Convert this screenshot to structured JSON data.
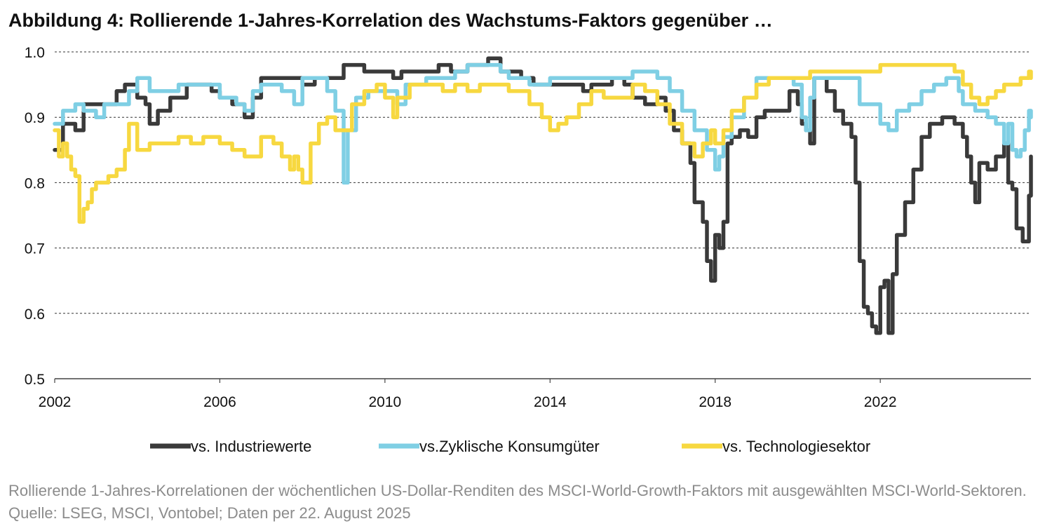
{
  "title": "Abbildung 4: Rollierende 1-Jahres-Korrelation des Wachstums-Faktors gegenüber …",
  "caption": "Rollierende 1-Jahres-Korrelationen der wöchentlichen US-Dollar-Renditen des MSCI-World-Growth-Faktors mit ausgewählten MSCI-World-Sektoren. Quelle: LSEG, MSCI, Vontobel; Daten per 22. August 2025",
  "chart_data": {
    "type": "line",
    "title": "Abbildung 4: Rollierende 1-Jahres-Korrelation des Wachstums-Faktors gegenüber …",
    "xlabel": "",
    "ylabel": "",
    "xlim": [
      2002,
      2025.65
    ],
    "ylim": [
      0.5,
      1.0
    ],
    "x_ticks": [
      "2002",
      "2006",
      "2010",
      "2014",
      "2018",
      "2022"
    ],
    "y_ticks": [
      "0.5",
      "0.6",
      "0.7",
      "0.8",
      "0.9",
      "1.0"
    ],
    "grid": "horizontal dashed",
    "legend_position": "bottom",
    "series": [
      {
        "name": "vs. Industriewerte",
        "color": "#3a3a3a",
        "points": [
          [
            2002.0,
            0.85
          ],
          [
            2002.2,
            0.89
          ],
          [
            2002.5,
            0.88
          ],
          [
            2002.7,
            0.92
          ],
          [
            2003.0,
            0.92
          ],
          [
            2003.3,
            0.92
          ],
          [
            2003.5,
            0.94
          ],
          [
            2003.7,
            0.95
          ],
          [
            2004.0,
            0.93
          ],
          [
            2004.2,
            0.92
          ],
          [
            2004.3,
            0.89
          ],
          [
            2004.5,
            0.91
          ],
          [
            2004.8,
            0.93
          ],
          [
            2005.2,
            0.95
          ],
          [
            2005.5,
            0.95
          ],
          [
            2005.8,
            0.94
          ],
          [
            2006.0,
            0.93
          ],
          [
            2006.3,
            0.92
          ],
          [
            2006.6,
            0.9
          ],
          [
            2006.8,
            0.93
          ],
          [
            2007.0,
            0.96
          ],
          [
            2007.5,
            0.96
          ],
          [
            2008.0,
            0.95
          ],
          [
            2008.3,
            0.96
          ],
          [
            2008.7,
            0.96
          ],
          [
            2009.0,
            0.98
          ],
          [
            2009.5,
            0.97
          ],
          [
            2010.0,
            0.97
          ],
          [
            2010.2,
            0.96
          ],
          [
            2010.4,
            0.97
          ],
          [
            2010.7,
            0.97
          ],
          [
            2011.0,
            0.97
          ],
          [
            2011.3,
            0.98
          ],
          [
            2011.6,
            0.97
          ],
          [
            2012.0,
            0.98
          ],
          [
            2012.3,
            0.98
          ],
          [
            2012.5,
            0.99
          ],
          [
            2012.8,
            0.97
          ],
          [
            2013.0,
            0.97
          ],
          [
            2013.3,
            0.96
          ],
          [
            2013.6,
            0.95
          ],
          [
            2014.0,
            0.95
          ],
          [
            2014.5,
            0.95
          ],
          [
            2014.8,
            0.94
          ],
          [
            2015.0,
            0.95
          ],
          [
            2015.5,
            0.96
          ],
          [
            2015.8,
            0.95
          ],
          [
            2016.0,
            0.93
          ],
          [
            2016.3,
            0.92
          ],
          [
            2016.6,
            0.93
          ],
          [
            2016.8,
            0.91
          ],
          [
            2017.0,
            0.88
          ],
          [
            2017.2,
            0.86
          ],
          [
            2017.4,
            0.83
          ],
          [
            2017.5,
            0.77
          ],
          [
            2017.7,
            0.74
          ],
          [
            2017.8,
            0.68
          ],
          [
            2017.9,
            0.65
          ],
          [
            2018.0,
            0.72
          ],
          [
            2018.1,
            0.7
          ],
          [
            2018.2,
            0.74
          ],
          [
            2018.3,
            0.86
          ],
          [
            2018.4,
            0.87
          ],
          [
            2018.6,
            0.88
          ],
          [
            2018.8,
            0.87
          ],
          [
            2019.0,
            0.9
          ],
          [
            2019.2,
            0.91
          ],
          [
            2019.5,
            0.91
          ],
          [
            2019.8,
            0.94
          ],
          [
            2020.0,
            0.92
          ],
          [
            2020.1,
            0.89
          ],
          [
            2020.2,
            0.88
          ],
          [
            2020.3,
            0.86
          ],
          [
            2020.4,
            0.96
          ],
          [
            2020.7,
            0.94
          ],
          [
            2020.9,
            0.91
          ],
          [
            2021.1,
            0.89
          ],
          [
            2021.3,
            0.87
          ],
          [
            2021.4,
            0.8
          ],
          [
            2021.5,
            0.68
          ],
          [
            2021.6,
            0.61
          ],
          [
            2021.7,
            0.6
          ],
          [
            2021.8,
            0.58
          ],
          [
            2021.9,
            0.57
          ],
          [
            2022.0,
            0.64
          ],
          [
            2022.1,
            0.65
          ],
          [
            2022.2,
            0.57
          ],
          [
            2022.3,
            0.66
          ],
          [
            2022.4,
            0.72
          ],
          [
            2022.6,
            0.77
          ],
          [
            2022.8,
            0.82
          ],
          [
            2023.0,
            0.87
          ],
          [
            2023.2,
            0.89
          ],
          [
            2023.5,
            0.9
          ],
          [
            2023.8,
            0.89
          ],
          [
            2024.0,
            0.87
          ],
          [
            2024.1,
            0.84
          ],
          [
            2024.2,
            0.8
          ],
          [
            2024.3,
            0.77
          ],
          [
            2024.4,
            0.83
          ],
          [
            2024.6,
            0.82
          ],
          [
            2024.8,
            0.84
          ],
          [
            2025.0,
            0.86
          ],
          [
            2025.1,
            0.8
          ],
          [
            2025.2,
            0.79
          ],
          [
            2025.3,
            0.73
          ],
          [
            2025.45,
            0.71
          ],
          [
            2025.6,
            0.78
          ],
          [
            2025.65,
            0.84
          ]
        ]
      },
      {
        "name": "vs.Zyklische Konsumgüter",
        "color": "#7fcfe4",
        "points": [
          [
            2002.0,
            0.89
          ],
          [
            2002.2,
            0.91
          ],
          [
            2002.5,
            0.92
          ],
          [
            2002.7,
            0.91
          ],
          [
            2003.0,
            0.9
          ],
          [
            2003.2,
            0.92
          ],
          [
            2003.5,
            0.92
          ],
          [
            2003.8,
            0.94
          ],
          [
            2004.0,
            0.96
          ],
          [
            2004.3,
            0.94
          ],
          [
            2004.6,
            0.94
          ],
          [
            2005.0,
            0.95
          ],
          [
            2005.5,
            0.95
          ],
          [
            2005.8,
            0.95
          ],
          [
            2006.0,
            0.93
          ],
          [
            2006.4,
            0.92
          ],
          [
            2006.6,
            0.91
          ],
          [
            2006.8,
            0.94
          ],
          [
            2007.0,
            0.95
          ],
          [
            2007.5,
            0.94
          ],
          [
            2007.8,
            0.92
          ],
          [
            2008.0,
            0.96
          ],
          [
            2008.3,
            0.96
          ],
          [
            2008.6,
            0.94
          ],
          [
            2008.8,
            0.91
          ],
          [
            2009.0,
            0.8
          ],
          [
            2009.1,
            0.88
          ],
          [
            2009.3,
            0.93
          ],
          [
            2009.6,
            0.94
          ],
          [
            2010.0,
            0.94
          ],
          [
            2010.3,
            0.92
          ],
          [
            2010.5,
            0.95
          ],
          [
            2011.0,
            0.96
          ],
          [
            2011.3,
            0.96
          ],
          [
            2011.7,
            0.97
          ],
          [
            2012.0,
            0.98
          ],
          [
            2012.5,
            0.98
          ],
          [
            2012.8,
            0.97
          ],
          [
            2013.0,
            0.96
          ],
          [
            2013.5,
            0.95
          ],
          [
            2014.0,
            0.96
          ],
          [
            2014.4,
            0.96
          ],
          [
            2014.8,
            0.96
          ],
          [
            2015.0,
            0.96
          ],
          [
            2015.5,
            0.96
          ],
          [
            2016.0,
            0.97
          ],
          [
            2016.3,
            0.97
          ],
          [
            2016.6,
            0.96
          ],
          [
            2016.9,
            0.94
          ],
          [
            2017.2,
            0.91
          ],
          [
            2017.5,
            0.88
          ],
          [
            2017.8,
            0.85
          ],
          [
            2018.0,
            0.82
          ],
          [
            2018.1,
            0.84
          ],
          [
            2018.2,
            0.87
          ],
          [
            2018.4,
            0.9
          ],
          [
            2018.7,
            0.93
          ],
          [
            2019.0,
            0.96
          ],
          [
            2019.3,
            0.96
          ],
          [
            2019.6,
            0.96
          ],
          [
            2019.9,
            0.95
          ],
          [
            2020.1,
            0.9
          ],
          [
            2020.2,
            0.88
          ],
          [
            2020.3,
            0.93
          ],
          [
            2020.4,
            0.96
          ],
          [
            2020.7,
            0.96
          ],
          [
            2021.0,
            0.96
          ],
          [
            2021.3,
            0.96
          ],
          [
            2021.5,
            0.92
          ],
          [
            2021.8,
            0.92
          ],
          [
            2022.0,
            0.89
          ],
          [
            2022.2,
            0.88
          ],
          [
            2022.4,
            0.91
          ],
          [
            2022.7,
            0.92
          ],
          [
            2023.0,
            0.94
          ],
          [
            2023.3,
            0.95
          ],
          [
            2023.6,
            0.96
          ],
          [
            2023.9,
            0.94
          ],
          [
            2024.0,
            0.92
          ],
          [
            2024.3,
            0.91
          ],
          [
            2024.6,
            0.9
          ],
          [
            2024.8,
            0.89
          ],
          [
            2025.0,
            0.86
          ],
          [
            2025.1,
            0.89
          ],
          [
            2025.2,
            0.85
          ],
          [
            2025.3,
            0.84
          ],
          [
            2025.4,
            0.85
          ],
          [
            2025.5,
            0.88
          ],
          [
            2025.6,
            0.91
          ],
          [
            2025.65,
            0.9
          ]
        ]
      },
      {
        "name": "vs. Technologiesektor",
        "color": "#f7d840",
        "points": [
          [
            2002.0,
            0.88
          ],
          [
            2002.1,
            0.84
          ],
          [
            2002.2,
            0.86
          ],
          [
            2002.3,
            0.84
          ],
          [
            2002.4,
            0.82
          ],
          [
            2002.5,
            0.81
          ],
          [
            2002.6,
            0.74
          ],
          [
            2002.7,
            0.76
          ],
          [
            2002.8,
            0.77
          ],
          [
            2002.9,
            0.79
          ],
          [
            2003.0,
            0.8
          ],
          [
            2003.3,
            0.81
          ],
          [
            2003.5,
            0.82
          ],
          [
            2003.7,
            0.85
          ],
          [
            2003.8,
            0.89
          ],
          [
            2004.0,
            0.85
          ],
          [
            2004.3,
            0.86
          ],
          [
            2004.6,
            0.86
          ],
          [
            2005.0,
            0.87
          ],
          [
            2005.3,
            0.86
          ],
          [
            2005.6,
            0.87
          ],
          [
            2006.0,
            0.86
          ],
          [
            2006.3,
            0.85
          ],
          [
            2006.6,
            0.84
          ],
          [
            2006.8,
            0.84
          ],
          [
            2007.0,
            0.87
          ],
          [
            2007.3,
            0.86
          ],
          [
            2007.5,
            0.84
          ],
          [
            2007.7,
            0.82
          ],
          [
            2007.8,
            0.84
          ],
          [
            2007.9,
            0.82
          ],
          [
            2008.0,
            0.8
          ],
          [
            2008.2,
            0.86
          ],
          [
            2008.4,
            0.89
          ],
          [
            2008.6,
            0.9
          ],
          [
            2008.8,
            0.88
          ],
          [
            2009.0,
            0.88
          ],
          [
            2009.2,
            0.92
          ],
          [
            2009.5,
            0.94
          ],
          [
            2009.8,
            0.95
          ],
          [
            2010.0,
            0.93
          ],
          [
            2010.2,
            0.9
          ],
          [
            2010.3,
            0.93
          ],
          [
            2010.6,
            0.95
          ],
          [
            2011.0,
            0.95
          ],
          [
            2011.4,
            0.94
          ],
          [
            2011.7,
            0.95
          ],
          [
            2012.0,
            0.94
          ],
          [
            2012.3,
            0.95
          ],
          [
            2012.6,
            0.95
          ],
          [
            2013.0,
            0.94
          ],
          [
            2013.3,
            0.94
          ],
          [
            2013.5,
            0.92
          ],
          [
            2013.8,
            0.9
          ],
          [
            2014.0,
            0.88
          ],
          [
            2014.2,
            0.89
          ],
          [
            2014.4,
            0.9
          ],
          [
            2014.7,
            0.92
          ],
          [
            2015.0,
            0.94
          ],
          [
            2015.3,
            0.93
          ],
          [
            2015.6,
            0.93
          ],
          [
            2016.0,
            0.95
          ],
          [
            2016.3,
            0.94
          ],
          [
            2016.6,
            0.92
          ],
          [
            2016.9,
            0.89
          ],
          [
            2017.2,
            0.86
          ],
          [
            2017.5,
            0.84
          ],
          [
            2017.7,
            0.86
          ],
          [
            2017.9,
            0.88
          ],
          [
            2018.0,
            0.86
          ],
          [
            2018.2,
            0.88
          ],
          [
            2018.4,
            0.91
          ],
          [
            2018.7,
            0.93
          ],
          [
            2019.0,
            0.95
          ],
          [
            2019.3,
            0.96
          ],
          [
            2019.6,
            0.96
          ],
          [
            2019.9,
            0.96
          ],
          [
            2020.1,
            0.96
          ],
          [
            2020.3,
            0.97
          ],
          [
            2020.6,
            0.97
          ],
          [
            2021.0,
            0.97
          ],
          [
            2021.3,
            0.97
          ],
          [
            2021.6,
            0.97
          ],
          [
            2022.0,
            0.98
          ],
          [
            2022.5,
            0.98
          ],
          [
            2023.0,
            0.98
          ],
          [
            2023.5,
            0.98
          ],
          [
            2023.8,
            0.97
          ],
          [
            2024.0,
            0.95
          ],
          [
            2024.2,
            0.93
          ],
          [
            2024.4,
            0.92
          ],
          [
            2024.6,
            0.93
          ],
          [
            2024.8,
            0.94
          ],
          [
            2025.0,
            0.95
          ],
          [
            2025.2,
            0.95
          ],
          [
            2025.4,
            0.96
          ],
          [
            2025.6,
            0.97
          ],
          [
            2025.65,
            0.96
          ]
        ]
      }
    ]
  }
}
